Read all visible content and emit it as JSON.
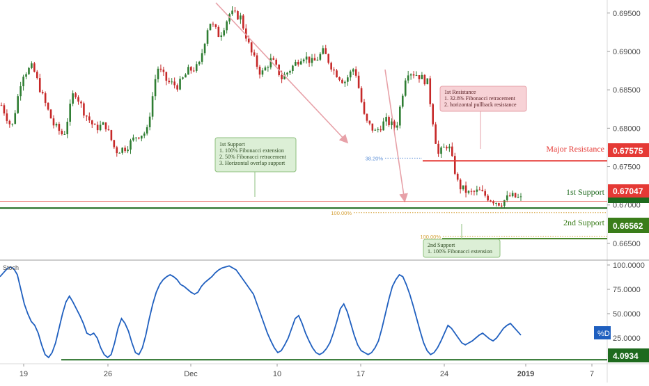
{
  "chart_data": [
    {
      "type": "candlestick",
      "panel": "price",
      "y_axis": {
        "range": [
          0.663,
          0.6967
        ],
        "tick_labels": [
          "0.69500",
          "0.69000",
          "0.68500",
          "0.68000",
          "0.67500",
          "0.67000",
          "0.66500"
        ],
        "tick_values": [
          0.695,
          0.69,
          0.685,
          0.68,
          0.675,
          0.67,
          0.665
        ]
      },
      "x_axis": {
        "tick_labels": [
          "19",
          "26",
          "Dec",
          "10",
          "17",
          "24",
          "2019",
          "7"
        ],
        "bold_labels": [
          "2019"
        ]
      },
      "series_anchor_points": [
        [
          "2018-11-15",
          0.683
        ],
        [
          "2018-11-17",
          0.68
        ],
        [
          "2018-11-19",
          0.687
        ],
        [
          "2018-11-20",
          0.688
        ],
        [
          "2018-11-21",
          0.684
        ],
        [
          "2018-11-22",
          0.6805
        ],
        [
          "2018-11-23",
          0.679
        ],
        [
          "2018-11-24",
          0.685
        ],
        [
          "2018-11-25",
          0.682
        ],
        [
          "2018-11-26",
          0.68
        ],
        [
          "2018-11-27",
          0.6805
        ],
        [
          "2018-11-28",
          0.677
        ],
        [
          "2018-11-29",
          0.6775
        ],
        [
          "2018-11-30",
          0.679
        ],
        [
          "2018-12-01",
          0.6795
        ],
        [
          "2018-12-02",
          0.688
        ],
        [
          "2018-12-03",
          0.686
        ],
        [
          "2018-12-04",
          0.6855
        ],
        [
          "2018-12-05",
          0.6875
        ],
        [
          "2018-12-06",
          0.688
        ],
        [
          "2018-12-07",
          0.694
        ],
        [
          "2018-12-08",
          0.692
        ],
        [
          "2018-12-09",
          0.695
        ],
        [
          "2018-12-10",
          0.6945
        ],
        [
          "2018-12-11",
          0.69
        ],
        [
          "2018-12-12",
          0.687
        ],
        [
          "2018-12-13",
          0.689
        ],
        [
          "2018-12-14",
          0.6865
        ],
        [
          "2018-12-15",
          0.688
        ],
        [
          "2018-12-16",
          0.6895
        ],
        [
          "2018-12-17",
          0.6885
        ],
        [
          "2018-12-18",
          0.69
        ],
        [
          "2018-12-19",
          0.6875
        ],
        [
          "2018-12-20",
          0.686
        ],
        [
          "2018-12-21",
          0.688
        ],
        [
          "2018-12-22",
          0.681
        ],
        [
          "2018-12-23",
          0.6795
        ],
        [
          "2018-12-24",
          0.681
        ],
        [
          "2018-12-25",
          0.68
        ],
        [
          "2018-12-26",
          0.6875
        ],
        [
          "2018-12-27",
          0.687
        ],
        [
          "2018-12-28",
          0.686
        ],
        [
          "2018-12-29",
          0.6765
        ],
        [
          "2018-12-30",
          0.678
        ],
        [
          "2018-12-31",
          0.6725
        ],
        [
          "2019-01-01",
          0.6715
        ],
        [
          "2019-01-02",
          0.6718
        ],
        [
          "2019-01-03",
          0.6708
        ],
        [
          "2019-01-04",
          0.6702
        ],
        [
          "2019-01-05",
          0.6712
        ],
        [
          "2019-01-06",
          0.6708
        ]
      ],
      "levels": [
        {
          "name": "Major Resistance",
          "value": 0.67575,
          "color": "#e53935"
        },
        {
          "name": "1st Support",
          "value": 0.67047,
          "color": "#e53935"
        },
        {
          "name": "1st Support zone",
          "value": 0.6696,
          "color": "#1e6a1e"
        },
        {
          "name": "2nd Support",
          "value": 0.66562,
          "color": "#3a7d1a"
        }
      ],
      "fib_markers": [
        {
          "label": "38.20%",
          "value": 0.6761,
          "color": "#5b8fd6"
        },
        {
          "label": "100.00%",
          "value": 0.669,
          "color": "#d6a23a"
        },
        {
          "label": "100.00%",
          "value": 0.6659,
          "color": "#d6a23a"
        }
      ]
    },
    {
      "type": "line",
      "panel": "oscillator",
      "title": "Stoch",
      "y_axis": {
        "range": [
          0,
          100
        ],
        "tick_labels": [
          "100.0000",
          "75.0000",
          "50.0000",
          "25.0000"
        ],
        "tick_values": [
          100,
          75,
          50,
          25
        ]
      },
      "series": [
        {
          "name": "%D",
          "color": "#1f5fbf",
          "values": [
            88,
            92,
            96,
            98,
            96,
            90,
            75,
            60,
            50,
            42,
            38,
            30,
            18,
            8,
            5,
            10,
            20,
            35,
            50,
            62,
            68,
            62,
            55,
            48,
            40,
            30,
            28,
            30,
            25,
            15,
            8,
            5,
            8,
            20,
            35,
            45,
            40,
            32,
            20,
            10,
            8,
            15,
            28,
            45,
            60,
            72,
            80,
            85,
            88,
            90,
            88,
            85,
            80,
            78,
            75,
            72,
            70,
            72,
            78,
            82,
            85,
            88,
            92,
            95,
            97,
            98,
            99,
            97,
            95,
            90,
            85,
            80,
            75,
            70,
            60,
            50,
            40,
            30,
            22,
            15,
            10,
            12,
            18,
            25,
            35,
            45,
            48,
            40,
            30,
            22,
            15,
            10,
            8,
            10,
            14,
            20,
            30,
            42,
            55,
            60,
            52,
            40,
            28,
            18,
            12,
            10,
            8,
            10,
            15,
            22,
            35,
            50,
            65,
            78,
            85,
            90,
            88,
            80,
            70,
            58,
            45,
            32,
            20,
            12,
            8,
            10,
            15,
            22,
            30,
            38,
            35,
            30,
            25,
            20,
            18,
            20,
            22,
            25,
            28,
            30,
            27,
            24,
            22,
            25,
            30,
            35,
            38,
            40,
            36,
            32,
            28
          ]
        }
      ],
      "level": {
        "value": 4.0934,
        "label": "4.0934",
        "color": "#1e6a1e"
      },
      "last_value_badge": {
        "label": "%D",
        "color": "#1f5fbf"
      }
    }
  ],
  "annotations": {
    "first_support_box": {
      "lines": [
        "1st Support",
        "1. 100% Fibonacci extension",
        "2. 50% Fibonacci retracement",
        "3. Horizontal overlap support"
      ]
    },
    "first_resistance_box": {
      "lines": [
        "1st Resistance",
        "1. 32.8% Fibonacci retracement",
        "2. horizontal pullback resistance"
      ]
    },
    "second_support_box": {
      "lines": [
        "2nd Support",
        "1. 100% Fibonacci extension"
      ]
    }
  },
  "level_labels": {
    "major_resistance": "Major Resistance",
    "first_support": "1st Support",
    "second_support": "2nd Support"
  },
  "price_badges": {
    "major_resistance": "0.67575",
    "first_support": "0.67047",
    "second_support": "0.66562"
  },
  "colors": {
    "up": "#2e7d32",
    "down": "#c62828",
    "arrow": "#e7a1a8",
    "resistance": "#e53935",
    "support_green": "#1e6a1e",
    "stoch_line": "#1f5fbf"
  }
}
